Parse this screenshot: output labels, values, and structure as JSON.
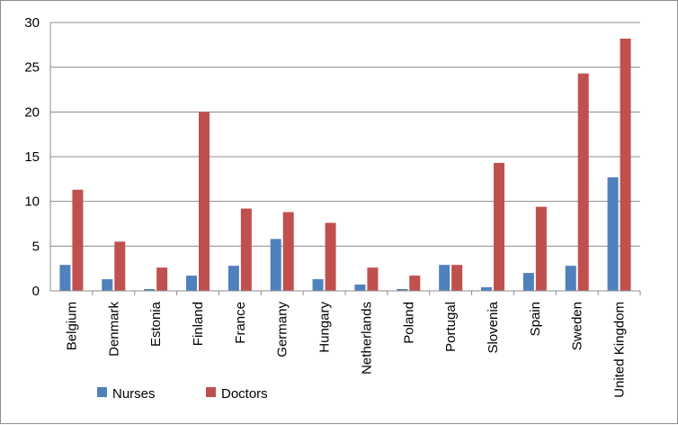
{
  "chart_data": {
    "type": "bar",
    "categories": [
      "Belgium",
      "Denmark",
      "Estonia",
      "Finland",
      "France",
      "Germany",
      "Hungary",
      "Netherlands",
      "Poland",
      "Portugal",
      "Slovenia",
      "Spain",
      "Sweden",
      "United Kingdom"
    ],
    "series": [
      {
        "name": "Nurses",
        "color": "#4f81bd",
        "values": [
          2.9,
          1.3,
          0.2,
          1.7,
          2.8,
          5.8,
          1.3,
          0.7,
          0.2,
          2.9,
          0.4,
          2.0,
          2.8,
          12.7
        ]
      },
      {
        "name": "Doctors",
        "color": "#c0504d",
        "values": [
          11.3,
          5.5,
          2.6,
          20.0,
          9.2,
          8.8,
          7.6,
          2.6,
          1.7,
          2.9,
          14.3,
          9.4,
          24.3,
          28.2
        ]
      }
    ],
    "ylim": [
      0,
      30
    ],
    "yticks": [
      0,
      5,
      10,
      15,
      20,
      25,
      30
    ],
    "grid": true,
    "legend": "bottom"
  }
}
